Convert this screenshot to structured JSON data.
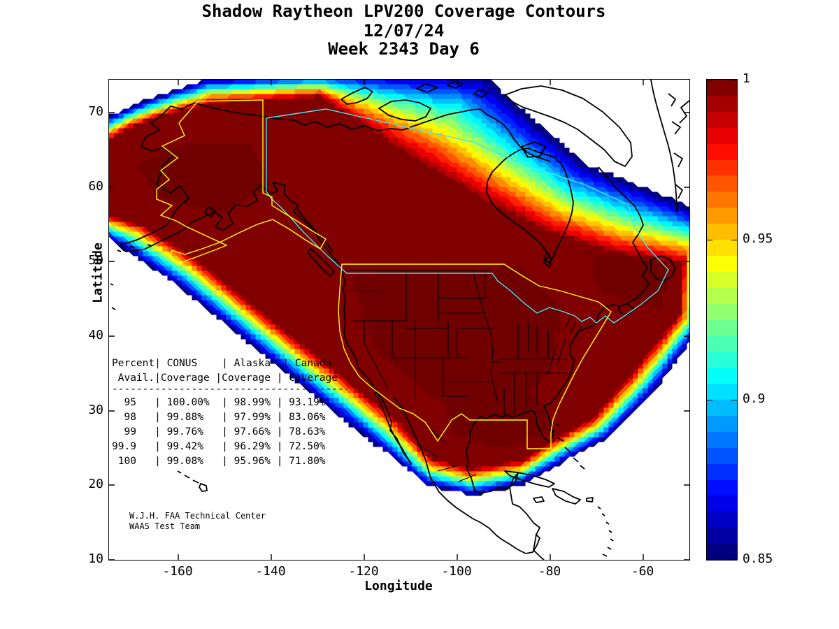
{
  "title": {
    "line1": "Shadow Raytheon LPV200 Coverage Contours",
    "line2": "12/07/24",
    "line3": "Week 2343 Day 6"
  },
  "axes": {
    "xlabel": "Longitude",
    "ylabel": "Latitude",
    "x_ticks": [
      {
        "label": "-160",
        "pos": 99
      },
      {
        "label": "-140",
        "pos": 232
      },
      {
        "label": "-120",
        "pos": 365
      },
      {
        "label": "-100",
        "pos": 498
      },
      {
        "label": "-80",
        "pos": 631
      },
      {
        "label": "-60",
        "pos": 764
      }
    ],
    "y_ticks": [
      {
        "label": "70",
        "pos": 47
      },
      {
        "label": "60",
        "pos": 154
      },
      {
        "label": "50",
        "pos": 260
      },
      {
        "label": "40",
        "pos": 367
      },
      {
        "label": "30",
        "pos": 474
      },
      {
        "label": "20",
        "pos": 580
      },
      {
        "label": "10",
        "pos": 687
      }
    ]
  },
  "colorbar": {
    "min": 0.85,
    "max": 1.0,
    "ticks": [
      {
        "label": "1",
        "value": 1.0
      },
      {
        "label": "0.95",
        "value": 0.95
      },
      {
        "label": "0.9",
        "value": 0.9
      },
      {
        "label": "0.85",
        "value": 0.85
      }
    ]
  },
  "table": {
    "header_lines": [
      "Percent| CONUS    | Alaska  | Canada",
      " Avail.|Coverage |Coverage | Coverage"
    ],
    "separator": "---------------------------------------",
    "rows": [
      "  95   | 100.00%  | 98.99% | 93.19%",
      "  98   | 99.88%   | 97.99% | 83.06%",
      "  99   | 99.76%   | 97.66% | 78.63%",
      "99.9   | 99.42%   | 96.29% | 72.50%",
      " 100   | 99.08%   | 95.96% | 71.80%"
    ]
  },
  "attribution": {
    "line1": "W.J.H. FAA Technical Center",
    "line2": "WAAS Test Team"
  },
  "chart_data": {
    "type": "filled_contour_map",
    "title": "Shadow Raytheon LPV200 Coverage Contours",
    "date": "12/07/24",
    "gps_week": 2343,
    "gps_day": 6,
    "x_axis": {
      "label": "Longitude",
      "ticks": [
        -160,
        -140,
        -120,
        -100,
        -80,
        -60
      ],
      "range": [
        -175,
        -50
      ]
    },
    "y_axis": {
      "label": "Latitude",
      "ticks": [
        70,
        60,
        50,
        40,
        30,
        20,
        10
      ],
      "range": [
        10,
        74.5
      ]
    },
    "colorbar": {
      "range": [
        0.85,
        1.0
      ],
      "ticks": [
        1,
        0.95,
        0.9,
        0.85
      ],
      "colormap": "jet",
      "description": "LPV200 availability; dark red >= 1 (max), rainbow fringe down to 0.85 (dark blue), white below 0.85"
    },
    "boundaries": {
      "yellow": "CONUS and Alaska service volume boundaries",
      "cyan": "Canada service volume boundary",
      "black": "Coastlines and state/province borders"
    },
    "coverage_table": {
      "columns": [
        "Percent Avail.",
        "CONUS Coverage",
        "Alaska Coverage",
        "Canada Coverage"
      ],
      "rows": [
        {
          "percent_avail": 95,
          "conus": "100.00%",
          "alaska": "98.99%",
          "canada": "93.19%"
        },
        {
          "percent_avail": 98,
          "conus": "99.88%",
          "alaska": "97.99%",
          "canada": "83.06%"
        },
        {
          "percent_avail": 99,
          "conus": "99.76%",
          "alaska": "97.66%",
          "canada": "78.63%"
        },
        {
          "percent_avail": 99.9,
          "conus": "99.42%",
          "alaska": "96.29%",
          "canada": "72.50%"
        },
        {
          "percent_avail": 100,
          "conus": "99.08%",
          "alaska": "95.96%",
          "canada": "71.80%"
        }
      ]
    },
    "attribution": [
      "W.J.H. FAA Technical Center",
      "WAAS Test Team"
    ]
  }
}
